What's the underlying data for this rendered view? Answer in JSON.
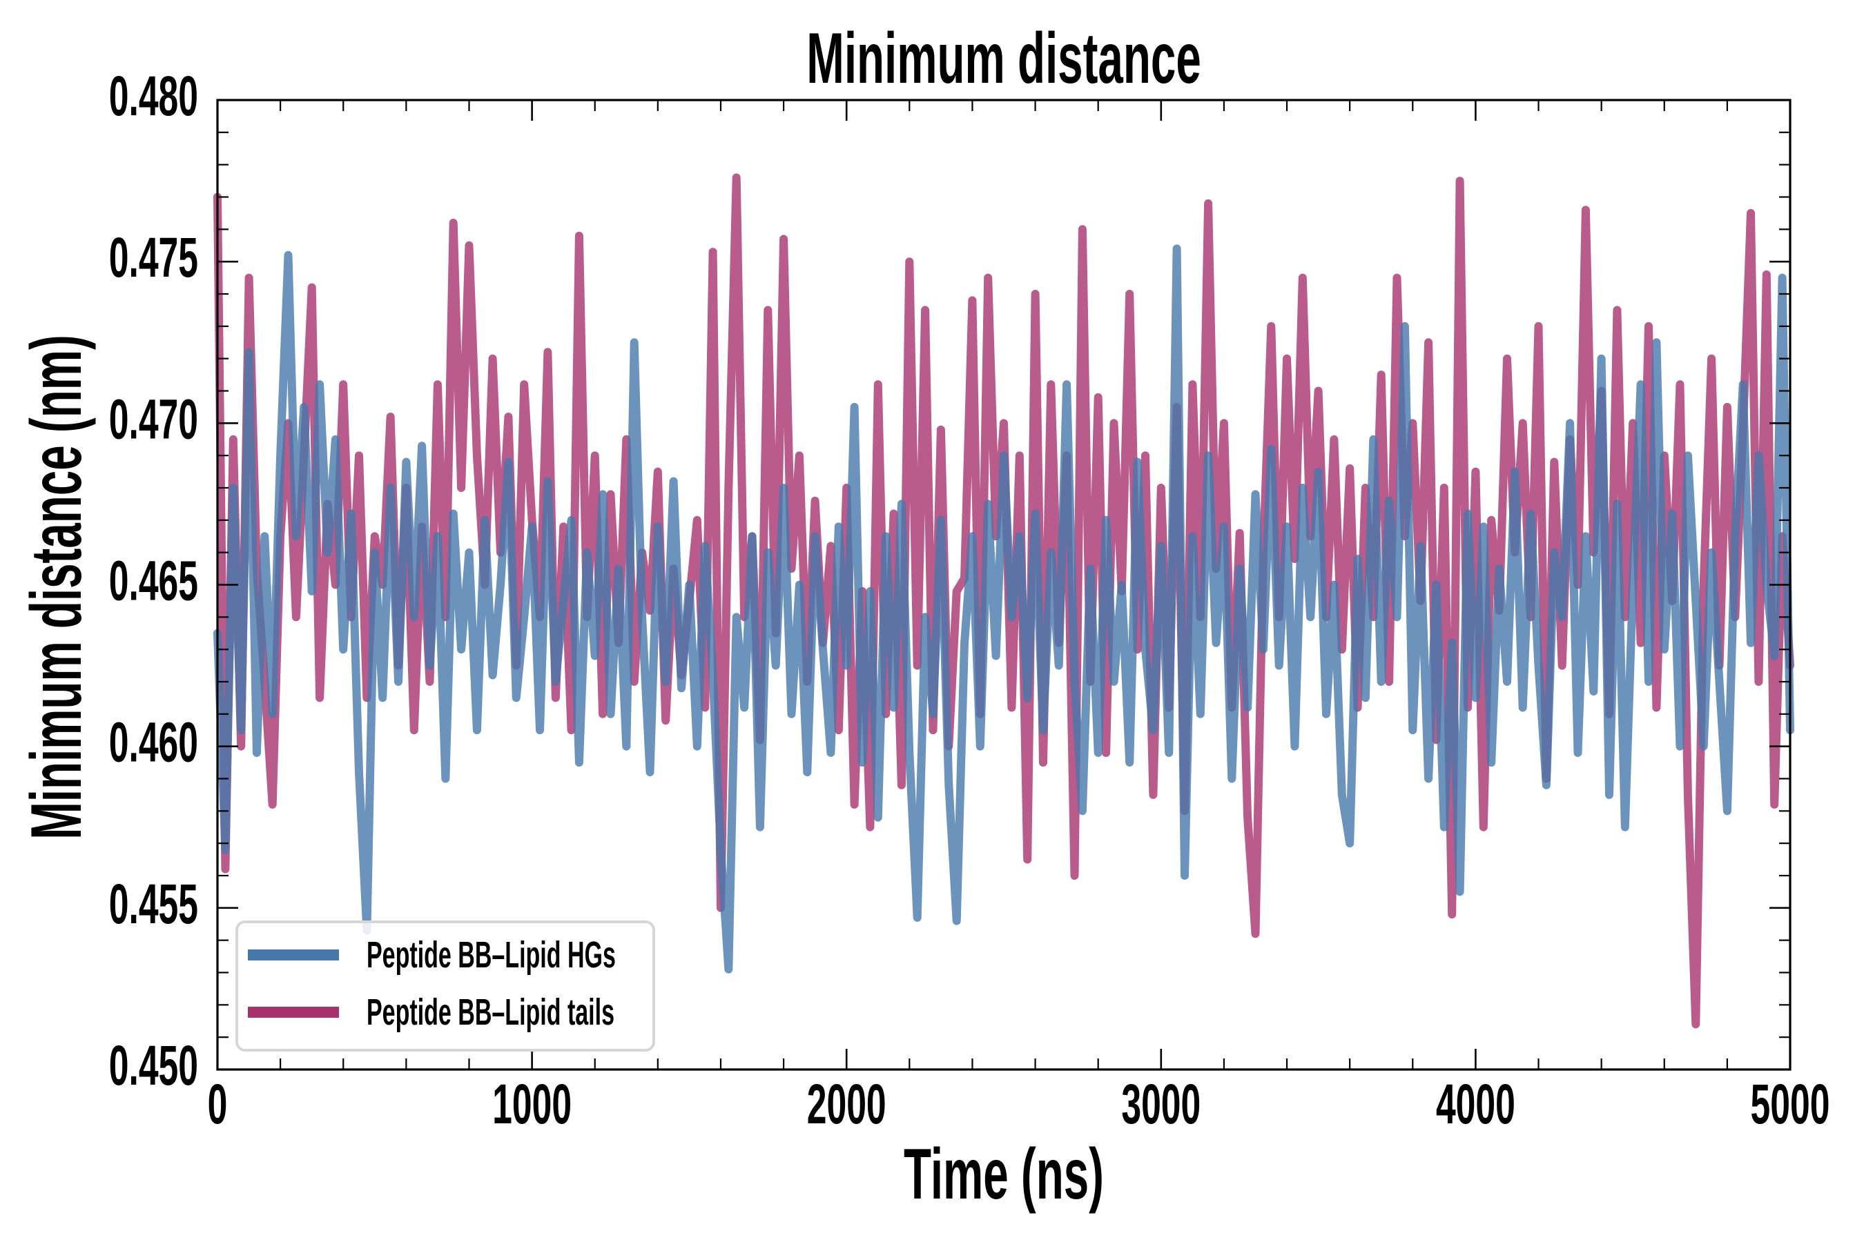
{
  "chart_data": {
    "type": "line",
    "title": "Minimum distance",
    "xlabel": "Time (ns)",
    "ylabel": "Minimum distance (nm)",
    "xlim": [
      0,
      5000
    ],
    "ylim": [
      0.45,
      0.48
    ],
    "x_major_ticks": [
      0,
      1000,
      2000,
      3000,
      4000,
      5000
    ],
    "x_tick_labels": [
      "0",
      "1000",
      "2000",
      "3000",
      "4000",
      "5000"
    ],
    "x_minor_step": 200,
    "y_major_ticks": [
      0.45,
      0.455,
      0.46,
      0.465,
      0.47,
      0.475,
      0.48
    ],
    "y_tick_labels": [
      "0.450",
      "0.455",
      "0.460",
      "0.465",
      "0.470",
      "0.475",
      "0.480"
    ],
    "y_minor_step": 0.001,
    "ticks_direction": "in",
    "ticks_on_all_sides": true,
    "grid": false,
    "legend_position": "lower-left",
    "time_start_ns": 0,
    "time_step_ns": 25,
    "series": [
      {
        "name": "Peptide BB–Lipid HGs",
        "color": "#4678ab",
        "alpha": 0.8,
        "values": [
          0.4635,
          0.4568,
          0.468,
          0.4605,
          0.4722,
          0.4598,
          0.4665,
          0.461,
          0.469,
          0.4752,
          0.4665,
          0.4705,
          0.4648,
          0.4712,
          0.466,
          0.4695,
          0.463,
          0.4672,
          0.4592,
          0.4543,
          0.466,
          0.4615,
          0.468,
          0.462,
          0.4688,
          0.464,
          0.4693,
          0.4625,
          0.4665,
          0.459,
          0.4672,
          0.463,
          0.466,
          0.4605,
          0.467,
          0.4622,
          0.465,
          0.4688,
          0.4615,
          0.464,
          0.4668,
          0.4605,
          0.4682,
          0.462,
          0.4645,
          0.467,
          0.4595,
          0.466,
          0.4628,
          0.4678,
          0.461,
          0.4655,
          0.46,
          0.4725,
          0.464,
          0.4592,
          0.4668,
          0.462,
          0.4682,
          0.4618,
          0.465,
          0.46,
          0.4662,
          0.4622,
          0.4568,
          0.4531,
          0.464,
          0.4612,
          0.4665,
          0.4575,
          0.466,
          0.4625,
          0.468,
          0.461,
          0.465,
          0.4592,
          0.4665,
          0.463,
          0.4598,
          0.4668,
          0.4625,
          0.4705,
          0.4595,
          0.4648,
          0.4578,
          0.4665,
          0.4612,
          0.4675,
          0.4598,
          0.4547,
          0.464,
          0.461,
          0.467,
          0.4588,
          0.4546,
          0.4632,
          0.4665,
          0.46,
          0.4675,
          0.4628,
          0.469,
          0.464,
          0.4665,
          0.4615,
          0.4672,
          0.4605,
          0.466,
          0.4625,
          0.4712,
          0.462,
          0.458,
          0.4655,
          0.4598,
          0.467,
          0.462,
          0.465,
          0.4595,
          0.4688,
          0.463,
          0.4605,
          0.4662,
          0.4598,
          0.4754,
          0.456,
          0.4665,
          0.461,
          0.469,
          0.4632,
          0.4668,
          0.459,
          0.4655,
          0.4612,
          0.4678,
          0.463,
          0.4692,
          0.4625,
          0.4668,
          0.46,
          0.468,
          0.464,
          0.4685,
          0.461,
          0.465,
          0.4585,
          0.457,
          0.4658,
          0.4615,
          0.4695,
          0.462,
          0.4676,
          0.464,
          0.473,
          0.4605,
          0.4662,
          0.459,
          0.465,
          0.4575,
          0.4632,
          0.4555,
          0.4672,
          0.4615,
          0.4668,
          0.4595,
          0.4655,
          0.462,
          0.4685,
          0.4612,
          0.4672,
          0.4625,
          0.4588,
          0.466,
          0.464,
          0.47,
          0.4598,
          0.4665,
          0.4617,
          0.472,
          0.4585,
          0.4675,
          0.4575,
          0.465,
          0.4712,
          0.462,
          0.4725,
          0.463,
          0.4672,
          0.46,
          0.469,
          0.4645,
          0.46,
          0.466,
          0.462,
          0.458,
          0.4665,
          0.4712,
          0.4632,
          0.469,
          0.465,
          0.4628,
          0.4745,
          0.4605
        ]
      },
      {
        "name": "Peptide BB–Lipid tails",
        "color": "#a8326e",
        "alpha": 0.8,
        "values": [
          0.477,
          0.4562,
          0.4695,
          0.46,
          0.4745,
          0.4655,
          0.462,
          0.4582,
          0.4665,
          0.47,
          0.464,
          0.469,
          0.4742,
          0.4615,
          0.4675,
          0.465,
          0.4712,
          0.464,
          0.469,
          0.4615,
          0.4665,
          0.465,
          0.4702,
          0.4625,
          0.468,
          0.4605,
          0.4668,
          0.462,
          0.4712,
          0.464,
          0.4762,
          0.468,
          0.4755,
          0.469,
          0.465,
          0.472,
          0.466,
          0.4702,
          0.4625,
          0.4712,
          0.467,
          0.464,
          0.4722,
          0.4615,
          0.4668,
          0.4605,
          0.4758,
          0.464,
          0.469,
          0.461,
          0.4678,
          0.4632,
          0.4695,
          0.462,
          0.466,
          0.4642,
          0.4685,
          0.4608,
          0.4655,
          0.4622,
          0.4645,
          0.467,
          0.4612,
          0.4753,
          0.455,
          0.468,
          0.4776,
          0.464,
          0.4665,
          0.4602,
          0.4735,
          0.4635,
          0.4757,
          0.4655,
          0.469,
          0.462,
          0.4676,
          0.4632,
          0.4662,
          0.4605,
          0.468,
          0.4582,
          0.4648,
          0.4575,
          0.4712,
          0.461,
          0.4672,
          0.4588,
          0.475,
          0.4625,
          0.4735,
          0.4605,
          0.4698,
          0.46,
          0.4648,
          0.4652,
          0.4738,
          0.461,
          0.4745,
          0.4665,
          0.47,
          0.4612,
          0.469,
          0.4565,
          0.474,
          0.4595,
          0.4712,
          0.4632,
          0.469,
          0.456,
          0.476,
          0.462,
          0.4708,
          0.4598,
          0.47,
          0.4648,
          0.474,
          0.463,
          0.469,
          0.4585,
          0.468,
          0.4612,
          0.4705,
          0.458,
          0.4712,
          0.464,
          0.4768,
          0.4655,
          0.47,
          0.4612,
          0.4666,
          0.4578,
          0.4542,
          0.466,
          0.473,
          0.464,
          0.472,
          0.4658,
          0.4745,
          0.4665,
          0.471,
          0.464,
          0.4695,
          0.463,
          0.4686,
          0.4612,
          0.468,
          0.464,
          0.4715,
          0.462,
          0.4745,
          0.4665,
          0.47,
          0.4645,
          0.4725,
          0.4602,
          0.468,
          0.4548,
          0.4775,
          0.4612,
          0.4685,
          0.4575,
          0.467,
          0.4642,
          0.472,
          0.466,
          0.47,
          0.464,
          0.473,
          0.459,
          0.4688,
          0.4625,
          0.4695,
          0.465,
          0.4766,
          0.466,
          0.471,
          0.461,
          0.4735,
          0.464,
          0.47,
          0.4632,
          0.473,
          0.4612,
          0.469,
          0.4645,
          0.4712,
          0.4585,
          0.4514,
          0.465,
          0.472,
          0.4625,
          0.4705,
          0.464,
          0.4698,
          0.4765,
          0.462,
          0.4746,
          0.4582,
          0.4665,
          0.4625
        ]
      }
    ]
  },
  "legend": {
    "items": [
      {
        "label": "Peptide BB–Lipid HGs",
        "color": "#4678ab"
      },
      {
        "label": "Peptide BB–Lipid tails",
        "color": "#a8326e"
      }
    ]
  }
}
